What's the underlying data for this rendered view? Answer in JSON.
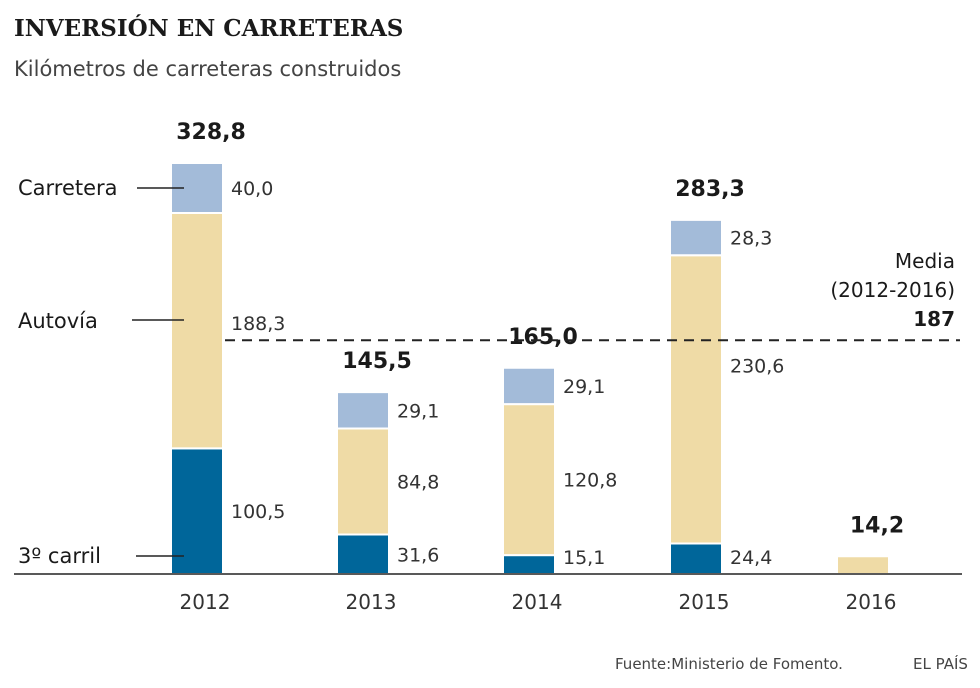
{
  "chart_data": {
    "type": "bar",
    "stacked": true,
    "title": "INVERSIÓN EN CARRETERAS",
    "subtitle": "Kilómetros de carreteras construidos",
    "categories": [
      "2012",
      "2013",
      "2014",
      "2015",
      "2016"
    ],
    "series": [
      {
        "name": "3º carril",
        "color": "#00669a",
        "values": [
          100.5,
          31.6,
          15.1,
          24.4,
          0
        ],
        "labels": [
          "100,5",
          "31,6",
          "15,1",
          "24,4",
          ""
        ]
      },
      {
        "name": "Autovía",
        "color": "#efdba6",
        "values": [
          188.3,
          84.8,
          120.8,
          230.6,
          14.2
        ],
        "labels": [
          "188,3",
          "84,8",
          "120,8",
          "230,6",
          ""
        ]
      },
      {
        "name": "Carretera",
        "color": "#a3bbd9",
        "values": [
          40.0,
          29.1,
          29.1,
          28.3,
          0
        ],
        "labels": [
          "40,0",
          "29,1",
          "29,1",
          "28,3",
          ""
        ]
      }
    ],
    "totals": [
      328.8,
      145.5,
      165.0,
      283.3,
      14.2
    ],
    "total_labels": [
      "328,8",
      "145,5",
      "165,0",
      "283,3",
      "14,2"
    ],
    "legend": [
      "Carretera",
      "Autovía",
      "3º carril"
    ],
    "average": {
      "label_line1": "Media",
      "label_line2": "(2012-2016)",
      "value": 187,
      "value_label": "187"
    },
    "ylim": [
      0,
      330
    ],
    "xlabel": "",
    "ylabel": ""
  },
  "source": "Fuente:Ministerio de Fomento.",
  "brand": "EL PAÍS"
}
